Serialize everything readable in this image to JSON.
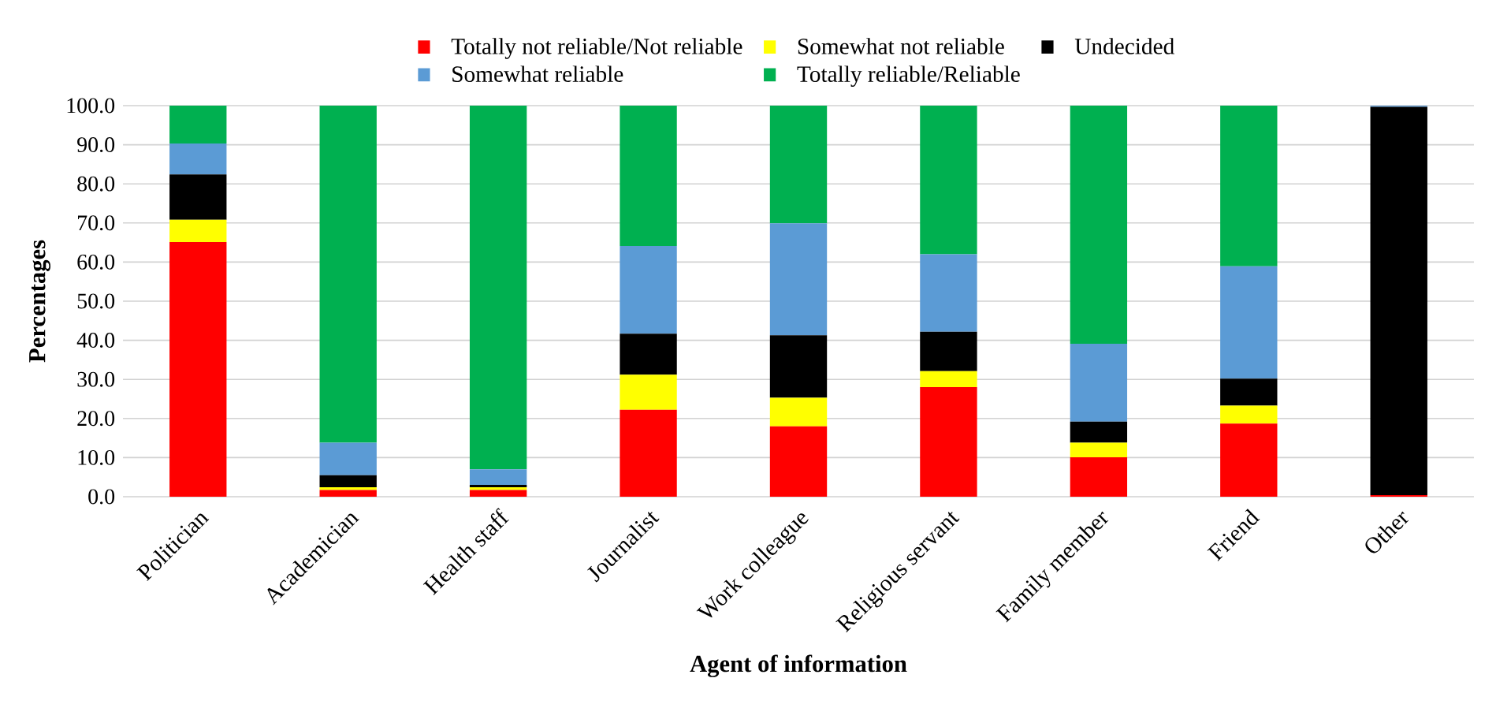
{
  "chart_data": {
    "type": "bar",
    "stacked": true,
    "xlabel": "Agent of information",
    "ylabel": "Percentages",
    "categories": [
      "Politician",
      "Academician",
      "Health staff",
      "Journalist",
      "Work colleague",
      "Religious servant",
      "Family member",
      "Friend",
      "Other"
    ],
    "series": [
      {
        "name": "Totally not reliable/Not reliable",
        "color": "#ff0000",
        "values": [
          65.1,
          1.7,
          1.7,
          22.2,
          18.0,
          28.0,
          10.1,
          18.7,
          0.4
        ]
      },
      {
        "name": "Somewhat not reliable",
        "color": "#ffff00",
        "values": [
          5.7,
          0.7,
          0.7,
          9.0,
          7.3,
          4.1,
          3.7,
          4.6,
          0
        ]
      },
      {
        "name": "Undecided",
        "color": "#000000",
        "values": [
          11.6,
          3.1,
          0.6,
          10.5,
          16.0,
          10.1,
          5.4,
          6.9,
          99.3
        ]
      },
      {
        "name": "Somewhat reliable",
        "color": "#5b9bd5",
        "values": [
          7.9,
          8.3,
          4.0,
          22.4,
          28.6,
          19.8,
          19.9,
          28.7,
          0.3
        ]
      },
      {
        "name": "Totally reliable/Reliable",
        "color": "#00b050",
        "values": [
          9.7,
          86.2,
          93.0,
          35.9,
          30.1,
          38.0,
          60.9,
          41.1,
          0
        ]
      }
    ],
    "ylim": [
      0,
      100
    ],
    "yticks": [
      {
        "value": 0,
        "label": "0.0"
      },
      {
        "value": 10,
        "label": "10.0"
      },
      {
        "value": 20,
        "label": "20.0"
      },
      {
        "value": 30,
        "label": "30.0"
      },
      {
        "value": 40,
        "label": "40.0"
      },
      {
        "value": 50,
        "label": "50.0"
      },
      {
        "value": 60,
        "label": "60.0"
      },
      {
        "value": 70,
        "label": "70.0"
      },
      {
        "value": 80,
        "label": "80.0"
      },
      {
        "value": 90,
        "label": "90.0"
      },
      {
        "value": 100,
        "label": "100.0"
      }
    ],
    "grid": "y",
    "legend": "top"
  }
}
